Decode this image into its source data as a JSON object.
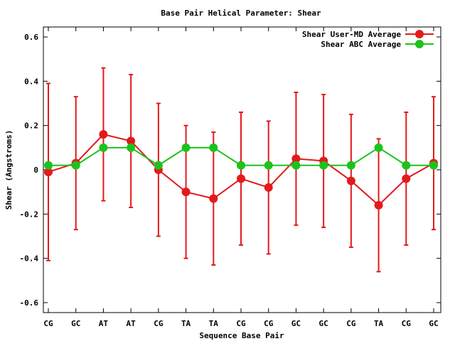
{
  "chart_data": {
    "type": "line",
    "title": "Base Pair Helical Parameter: Shear",
    "xlabel": "Sequence Base Pair",
    "ylabel": "Shear (Angstroms)",
    "categories": [
      "CG",
      "GC",
      "AT",
      "AT",
      "CG",
      "TA",
      "TA",
      "CG",
      "CG",
      "GC",
      "GC",
      "CG",
      "TA",
      "CG",
      "GC"
    ],
    "ylim": [
      -0.645,
      0.645
    ],
    "yticks": [
      {
        "value": 0.6,
        "label": "0.6"
      },
      {
        "value": 0.4,
        "label": "0.4"
      },
      {
        "value": 0.2,
        "label": "0.2"
      },
      {
        "value": 0,
        "label": "0"
      },
      {
        "value": -0.2,
        "label": "-0.2"
      },
      {
        "value": -0.4,
        "label": "-0.4"
      },
      {
        "value": -0.6,
        "label": "-0.6"
      }
    ],
    "grid": false,
    "legend_position": "top-right",
    "series": [
      {
        "name": "Shear User-MD Average",
        "color": "#e31a1c",
        "values": [
          -0.01,
          0.03,
          0.16,
          0.13,
          0.0,
          -0.1,
          -0.13,
          -0.04,
          -0.08,
          0.05,
          0.04,
          -0.05,
          -0.16,
          -0.04,
          0.03
        ],
        "error_low": [
          -0.41,
          -0.27,
          -0.14,
          -0.17,
          -0.3,
          -0.4,
          -0.43,
          -0.34,
          -0.38,
          -0.25,
          -0.26,
          -0.35,
          -0.46,
          -0.34,
          -0.27
        ],
        "error_high": [
          0.39,
          0.33,
          0.46,
          0.43,
          0.3,
          0.2,
          0.17,
          0.26,
          0.22,
          0.35,
          0.34,
          0.25,
          0.14,
          0.26,
          0.33
        ]
      },
      {
        "name": "Shear ABC Average",
        "color": "#1cc31c",
        "values": [
          0.02,
          0.02,
          0.1,
          0.1,
          0.02,
          0.1,
          0.1,
          0.02,
          0.02,
          0.02,
          0.02,
          0.02,
          0.1,
          0.02,
          0.02
        ]
      }
    ]
  }
}
